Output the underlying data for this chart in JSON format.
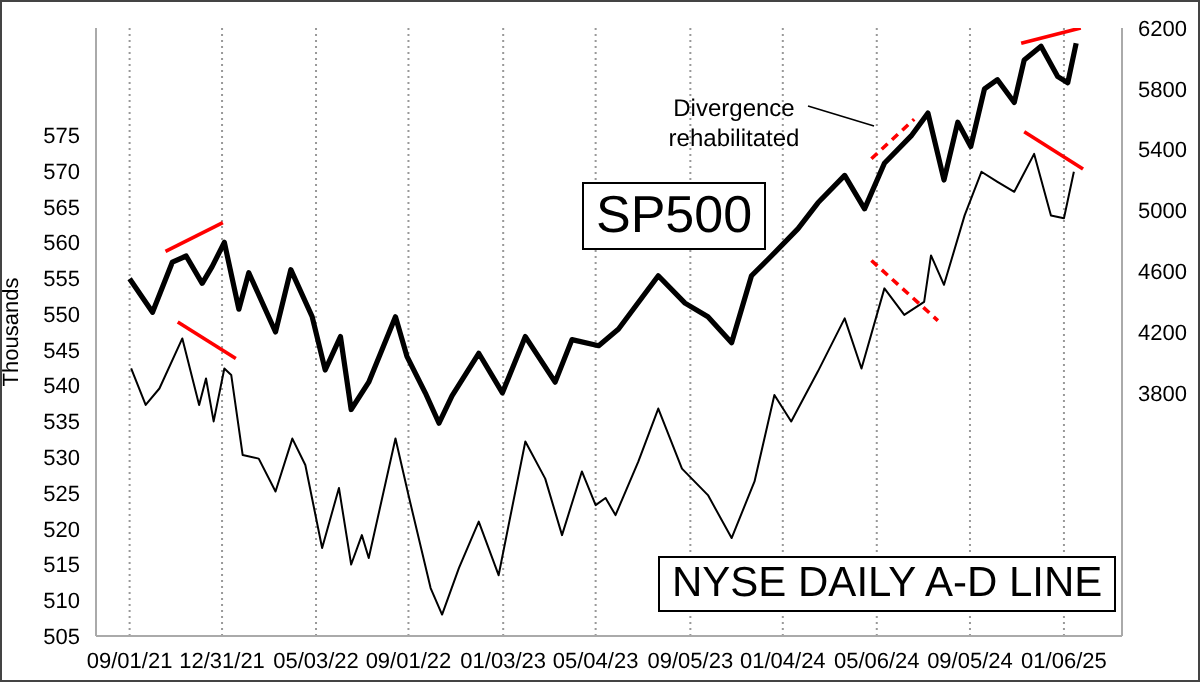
{
  "chart_data": {
    "type": "line",
    "ylabel": "Thousands",
    "legend": false,
    "grid": "x",
    "xlim": [
      "2021-07-19",
      "2025-03-23"
    ],
    "xticks": [
      {
        "value": "2021-09-01",
        "label": "09/01/21"
      },
      {
        "value": "2021-12-31",
        "label": "12/31/21"
      },
      {
        "value": "2022-05-03",
        "label": "05/03/22"
      },
      {
        "value": "2022-09-01",
        "label": "09/01/22"
      },
      {
        "value": "2023-01-03",
        "label": "01/03/23"
      },
      {
        "value": "2023-05-04",
        "label": "05/04/23"
      },
      {
        "value": "2023-09-05",
        "label": "09/05/23"
      },
      {
        "value": "2024-01-04",
        "label": "01/04/24"
      },
      {
        "value": "2024-05-06",
        "label": "05/06/24"
      },
      {
        "value": "2024-09-05",
        "label": "09/05/24"
      },
      {
        "value": "2025-01-06",
        "label": "01/06/25"
      }
    ],
    "ylim": [
      505,
      590
    ],
    "yticks": [
      505,
      510,
      515,
      520,
      525,
      530,
      535,
      540,
      545,
      550,
      555,
      560,
      565,
      570,
      575
    ],
    "y2lim": [
      2200,
      6200
    ],
    "y2ticks": [
      3800,
      4200,
      4600,
      5000,
      5400,
      5800,
      6200
    ],
    "annotations": [
      "Divergence rehabilitated"
    ],
    "series": [
      {
        "name": "SP500",
        "axis": "y2",
        "color": "#000000",
        "x": [
          "2021-09-01",
          "2021-10-01",
          "2021-10-27",
          "2021-11-14",
          "2021-12-05",
          "2021-12-18",
          "2022-01-03",
          "2022-01-22",
          "2022-02-04",
          "2022-03-11",
          "2022-03-31",
          "2022-04-28",
          "2022-05-15",
          "2022-06-04",
          "2022-06-18",
          "2022-07-11",
          "2022-08-15",
          "2022-08-30",
          "2022-09-23",
          "2022-10-11",
          "2022-10-28",
          "2022-12-02",
          "2023-01-02",
          "2023-02-01",
          "2023-03-12",
          "2023-04-03",
          "2023-05-08",
          "2023-06-03",
          "2023-07-25",
          "2023-08-29",
          "2023-09-28",
          "2023-10-29",
          "2023-11-24",
          "2023-12-20",
          "2024-01-24",
          "2024-02-19",
          "2024-03-25",
          "2024-04-20",
          "2024-05-16",
          "2024-06-20",
          "2024-07-12",
          "2024-08-02",
          "2024-08-20",
          "2024-09-06",
          "2024-09-24",
          "2024-10-11",
          "2024-11-02",
          "2024-11-15",
          "2024-12-07",
          "2024-12-29",
          "2025-01-11",
          "2025-01-22"
        ],
        "values": [
          4550,
          4330,
          4660,
          4700,
          4520,
          4630,
          4790,
          4350,
          4590,
          4200,
          4610,
          4300,
          3950,
          4170,
          3690,
          3870,
          4300,
          4040,
          3800,
          3600,
          3780,
          4060,
          3800,
          4170,
          3870,
          4150,
          4110,
          4220,
          4570,
          4390,
          4300,
          4130,
          4570,
          4700,
          4880,
          5050,
          5230,
          5010,
          5310,
          5490,
          5640,
          5200,
          5580,
          5420,
          5800,
          5860,
          5710,
          5990,
          6080,
          5880,
          5840,
          6100
        ]
      },
      {
        "name": "NYSE DAILY A-D LINE",
        "axis": "y",
        "color": "#000000",
        "x": [
          "2021-09-03",
          "2021-09-22",
          "2021-10-10",
          "2021-11-09",
          "2021-12-01",
          "2021-12-10",
          "2021-12-20",
          "2022-01-03",
          "2022-01-12",
          "2022-01-27",
          "2022-02-17",
          "2022-03-11",
          "2022-04-02",
          "2022-04-19",
          "2022-05-11",
          "2022-06-02",
          "2022-06-18",
          "2022-07-02",
          "2022-07-11",
          "2022-08-15",
          "2022-09-01",
          "2022-09-30",
          "2022-10-15",
          "2022-11-06",
          "2022-12-02",
          "2022-12-28",
          "2023-02-01",
          "2023-02-27",
          "2023-03-21",
          "2023-04-16",
          "2023-05-04",
          "2023-05-17",
          "2023-05-30",
          "2023-06-29",
          "2023-07-25",
          "2023-08-25",
          "2023-09-28",
          "2023-10-29",
          "2023-11-28",
          "2023-12-24",
          "2024-01-15",
          "2024-02-19",
          "2024-03-25",
          "2024-04-16",
          "2024-05-16",
          "2024-06-11",
          "2024-07-07",
          "2024-07-16",
          "2024-08-02",
          "2024-08-29",
          "2024-09-20",
          "2024-10-11",
          "2024-11-02",
          "2024-11-28",
          "2024-12-20",
          "2025-01-06",
          "2025-01-19"
        ],
        "values": [
          542.4,
          537.3,
          539.6,
          546.6,
          537.3,
          541.0,
          535.0,
          542.4,
          541.5,
          530.3,
          529.8,
          525.2,
          532.6,
          528.9,
          517.3,
          525.7,
          515.0,
          519.1,
          515.9,
          532.6,
          524.7,
          511.7,
          508.0,
          514.5,
          521.0,
          513.5,
          532.2,
          527.0,
          519.1,
          528.0,
          523.3,
          524.3,
          521.9,
          529.4,
          536.8,
          528.4,
          524.7,
          518.7,
          526.6,
          538.7,
          535.0,
          542.0,
          549.4,
          542.4,
          553.6,
          549.9,
          551.7,
          558.2,
          554.1,
          563.8,
          569.9,
          568.5,
          567.1,
          572.4,
          563.8,
          563.4,
          569.9
        ]
      },
      {
        "axis": "y2",
        "color": "#ff0000",
        "line_style": "solid",
        "x": [
          "2021-10-18",
          "2022-01-01"
        ],
        "values": [
          4730,
          4920
        ]
      },
      {
        "axis": "y",
        "color": "#ff0000",
        "line_style": "solid",
        "x": [
          "2021-11-03",
          "2022-01-18"
        ],
        "values": [
          548.9,
          543.8
        ]
      },
      {
        "axis": "y2",
        "color": "#ff0000",
        "line_style": "dashed",
        "x": [
          "2024-04-29",
          "2024-06-24"
        ],
        "values": [
          5340,
          5600
        ]
      },
      {
        "axis": "y",
        "color": "#ff0000",
        "line_style": "dashed",
        "x": [
          "2024-04-29",
          "2024-07-25"
        ],
        "values": [
          557.5,
          549.1
        ]
      },
      {
        "axis": "y2",
        "color": "#ff0000",
        "line_style": "solid",
        "x": [
          "2024-11-11",
          "2025-01-28"
        ],
        "values": [
          6100,
          6200
        ]
      },
      {
        "axis": "y",
        "color": "#ff0000",
        "line_style": "solid",
        "x": [
          "2024-11-15",
          "2025-01-31"
        ],
        "values": [
          575.5,
          570.3
        ]
      }
    ]
  }
}
